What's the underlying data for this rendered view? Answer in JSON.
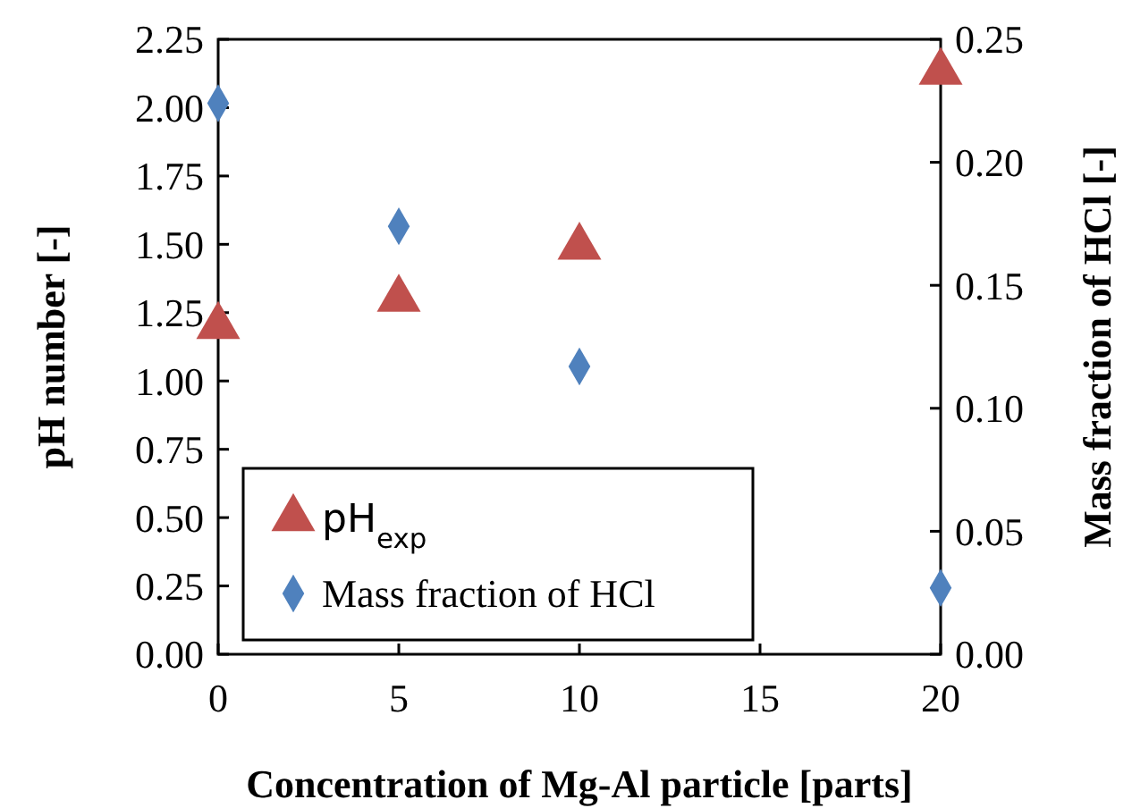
{
  "chart_data": {
    "type": "scatter",
    "xlabel": "Concentration of Mg-Al particle [parts]",
    "ylabel": "pH number [-]",
    "y2label": "Mass fraction of HCl [-]",
    "x": [
      0,
      5,
      10,
      20
    ],
    "series": [
      {
        "name": "pH$_{exp}$",
        "color": "#c0504d",
        "marker": "triangle",
        "values": [
          1.2,
          1.3,
          1.49,
          2.13
        ]
      },
      {
        "name": "Mass fraction of HCl",
        "color": "#4f81bd",
        "marker": "diamond",
        "axis": "y2",
        "values": [
          0.224,
          0.174,
          0.117,
          0.027
        ]
      }
    ],
    "xlim": [
      0,
      20
    ],
    "xticks": [
      0,
      5,
      10,
      15,
      20
    ],
    "ylim": [
      0,
      2.25
    ],
    "yticks": [
      {
        "value": 0,
        "label": "0.00"
      },
      {
        "value": 0.25,
        "label": "0.25"
      },
      {
        "value": 0.5,
        "label": "0.50"
      },
      {
        "value": 0.75,
        "label": "0.75"
      },
      {
        "value": 1,
        "label": "1.00"
      },
      {
        "value": 1.25,
        "label": "1.25"
      },
      {
        "value": 1.5,
        "label": "1.50"
      },
      {
        "value": 1.75,
        "label": "1.75"
      },
      {
        "value": 2,
        "label": "2.00"
      },
      {
        "value": 2.25,
        "label": "2.25"
      }
    ],
    "y2lim": [
      0,
      0.25
    ],
    "y2ticks": [
      {
        "value": 0,
        "label": "0.00"
      },
      {
        "value": 0.05,
        "label": "0.05"
      },
      {
        "value": 0.1,
        "label": "0.10"
      },
      {
        "value": 0.15,
        "label": "0.15"
      },
      {
        "value": 0.2,
        "label": "0.20"
      },
      {
        "value": 0.25,
        "label": "0.25"
      }
    ],
    "legend": "bottom left",
    "grid": false
  }
}
